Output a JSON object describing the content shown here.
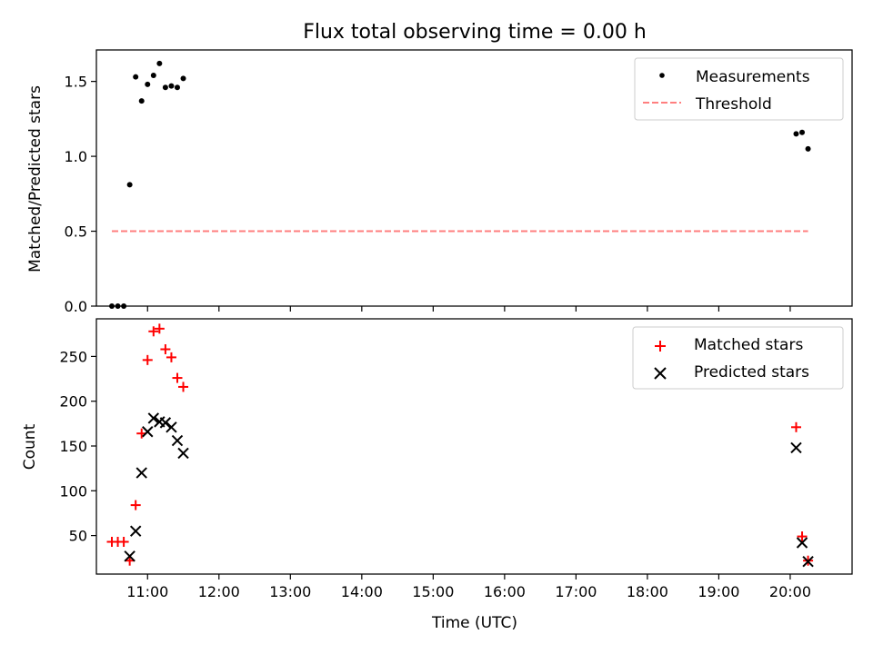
{
  "chart_data": [
    {
      "type": "scatter",
      "title": "Flux total observing time = 0.00 h",
      "xlabel": "",
      "ylabel": "Matched/Predicted stars",
      "xlim": [
        "10:17",
        "20:52"
      ],
      "ylim": [
        0,
        1.71
      ],
      "yticks": [
        0.0,
        0.5,
        1.0,
        1.5
      ],
      "ytick_labels": [
        "0.0",
        "0.5",
        "1.0",
        "1.5"
      ],
      "xticks": [
        "11:00",
        "12:00",
        "13:00",
        "14:00",
        "15:00",
        "16:00",
        "17:00",
        "18:00",
        "19:00",
        "20:00"
      ],
      "legend_position": "top-right",
      "series": [
        {
          "name": "Measurements",
          "kind": "scatter",
          "marker": "dot",
          "color": "#000000",
          "points": [
            {
              "x": "10:30",
              "y": 0.0
            },
            {
              "x": "10:35",
              "y": 0.0
            },
            {
              "x": "10:40",
              "y": 0.0
            },
            {
              "x": "10:45",
              "y": 0.81
            },
            {
              "x": "10:50",
              "y": 1.53
            },
            {
              "x": "10:55",
              "y": 1.37
            },
            {
              "x": "11:00",
              "y": 1.48
            },
            {
              "x": "11:05",
              "y": 1.54
            },
            {
              "x": "11:10",
              "y": 1.62
            },
            {
              "x": "11:15",
              "y": 1.46
            },
            {
              "x": "11:20",
              "y": 1.47
            },
            {
              "x": "11:25",
              "y": 1.46
            },
            {
              "x": "11:30",
              "y": 1.52
            },
            {
              "x": "20:05",
              "y": 1.15
            },
            {
              "x": "20:10",
              "y": 1.16
            },
            {
              "x": "20:15",
              "y": 1.05
            }
          ]
        },
        {
          "name": "Threshold",
          "kind": "line",
          "style": "dashed",
          "color": "#ff7f7f",
          "points": [
            {
              "x": "10:30",
              "y": 0.5
            },
            {
              "x": "20:15",
              "y": 0.5
            }
          ]
        }
      ]
    },
    {
      "type": "scatter",
      "title": "",
      "xlabel": "Time (UTC)",
      "ylabel": "Count",
      "xlim": [
        "10:17",
        "20:52"
      ],
      "ylim": [
        7,
        292
      ],
      "yticks": [
        50,
        100,
        150,
        200,
        250
      ],
      "ytick_labels": [
        "50",
        "100",
        "150",
        "200",
        "250"
      ],
      "xticks": [
        "11:00",
        "12:00",
        "13:00",
        "14:00",
        "15:00",
        "16:00",
        "17:00",
        "18:00",
        "19:00",
        "20:00"
      ],
      "xtick_labels": [
        "11:00",
        "12:00",
        "13:00",
        "14:00",
        "15:00",
        "16:00",
        "17:00",
        "18:00",
        "19:00",
        "20:00"
      ],
      "legend_position": "top-right",
      "series": [
        {
          "name": "Matched stars",
          "kind": "scatter",
          "marker": "plus",
          "color": "#ff0000",
          "points": [
            {
              "x": "10:30",
              "y": 43
            },
            {
              "x": "10:35",
              "y": 43
            },
            {
              "x": "10:40",
              "y": 43
            },
            {
              "x": "10:45",
              "y": 22
            },
            {
              "x": "10:50",
              "y": 84
            },
            {
              "x": "10:55",
              "y": 164
            },
            {
              "x": "11:00",
              "y": 246
            },
            {
              "x": "11:05",
              "y": 278
            },
            {
              "x": "11:10",
              "y": 281
            },
            {
              "x": "11:15",
              "y": 258
            },
            {
              "x": "11:20",
              "y": 249
            },
            {
              "x": "11:25",
              "y": 226
            },
            {
              "x": "11:30",
              "y": 216
            },
            {
              "x": "20:05",
              "y": 171
            },
            {
              "x": "20:10",
              "y": 49
            },
            {
              "x": "20:15",
              "y": 22
            }
          ]
        },
        {
          "name": "Predicted stars",
          "kind": "scatter",
          "marker": "x",
          "color": "#000000",
          "points": [
            {
              "x": "10:45",
              "y": 27
            },
            {
              "x": "10:50",
              "y": 55
            },
            {
              "x": "10:55",
              "y": 120
            },
            {
              "x": "11:00",
              "y": 166
            },
            {
              "x": "11:05",
              "y": 181
            },
            {
              "x": "11:10",
              "y": 177
            },
            {
              "x": "11:15",
              "y": 176
            },
            {
              "x": "11:20",
              "y": 171
            },
            {
              "x": "11:25",
              "y": 156
            },
            {
              "x": "11:30",
              "y": 142
            },
            {
              "x": "20:05",
              "y": 148
            },
            {
              "x": "20:10",
              "y": 42
            },
            {
              "x": "20:15",
              "y": 21
            }
          ]
        }
      ]
    }
  ]
}
